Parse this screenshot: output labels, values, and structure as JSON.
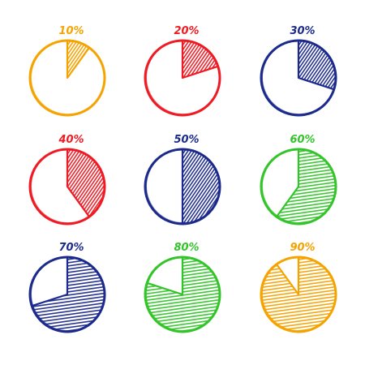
{
  "chart_data": [
    {
      "type": "pie",
      "label": "10%",
      "value": 10,
      "color": "#f5a300"
    },
    {
      "type": "pie",
      "label": "20%",
      "value": 20,
      "color": "#ee1b24"
    },
    {
      "type": "pie",
      "label": "30%",
      "value": 30,
      "color": "#1c2a8c"
    },
    {
      "type": "pie",
      "label": "40%",
      "value": 40,
      "color": "#ee1b24"
    },
    {
      "type": "pie",
      "label": "50%",
      "value": 50,
      "color": "#1c2a8c"
    },
    {
      "type": "pie",
      "label": "60%",
      "value": 60,
      "color": "#33c42a"
    },
    {
      "type": "pie",
      "label": "70%",
      "value": 70,
      "color": "#1c2a8c"
    },
    {
      "type": "pie",
      "label": "80%",
      "value": 80,
      "color": "#33c42a"
    },
    {
      "type": "pie",
      "label": "90%",
      "value": 90,
      "color": "#f5a300"
    }
  ]
}
